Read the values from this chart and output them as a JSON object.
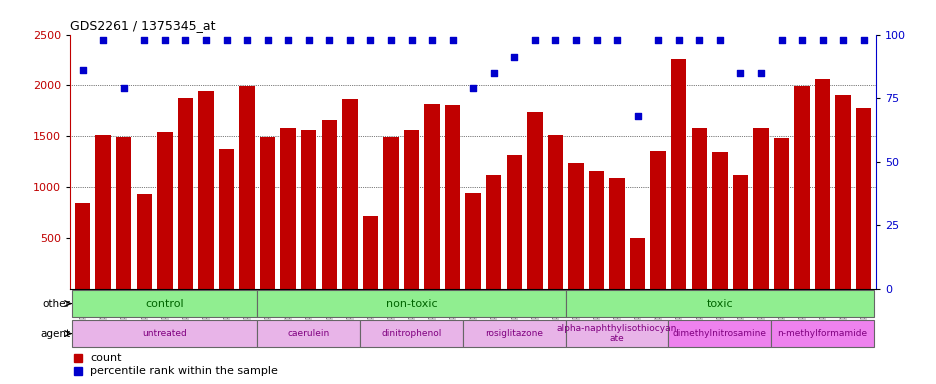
{
  "title": "GDS2261 / 1375345_at",
  "samples": [
    "GSM127079",
    "GSM127080",
    "GSM127081",
    "GSM127082",
    "GSM127083",
    "GSM127084",
    "GSM127085",
    "GSM127086",
    "GSM127087",
    "GSM127054",
    "GSM127055",
    "GSM127056",
    "GSM127057",
    "GSM127058",
    "GSM127064",
    "GSM127065",
    "GSM127066",
    "GSM127067",
    "GSM127068",
    "GSM127074",
    "GSM127075",
    "GSM127076",
    "GSM127077",
    "GSM127078",
    "GSM127049",
    "GSM127050",
    "GSM127051",
    "GSM127052",
    "GSM127053",
    "GSM127059",
    "GSM127060",
    "GSM127061",
    "GSM127062",
    "GSM127063",
    "GSM127069",
    "GSM127070",
    "GSM127071",
    "GSM127072",
    "GSM127073"
  ],
  "bar_values": [
    840,
    1510,
    1490,
    930,
    1540,
    1880,
    1940,
    1370,
    1990,
    1490,
    1580,
    1560,
    1660,
    1870,
    710,
    1490,
    1560,
    1820,
    1810,
    940,
    1120,
    1310,
    1740,
    1510,
    1240,
    1160,
    1090,
    500,
    1350,
    2260,
    1580,
    1340,
    1120,
    1580,
    1480,
    1990,
    2060,
    1910,
    1780
  ],
  "percentile_values": [
    86,
    98,
    79,
    98,
    98,
    98,
    98,
    98,
    98,
    98,
    98,
    98,
    98,
    98,
    98,
    98,
    98,
    98,
    98,
    79,
    85,
    91,
    98,
    98,
    98,
    98,
    98,
    68,
    98,
    98,
    98,
    98,
    85,
    85,
    98,
    98,
    98,
    98,
    98
  ],
  "bar_color": "#c00000",
  "dot_color": "#0000cc",
  "left_ylim": [
    0,
    2500
  ],
  "right_ylim": [
    0,
    100
  ],
  "left_yticks": [
    500,
    1000,
    1500,
    2000,
    2500
  ],
  "right_yticks": [
    0,
    25,
    50,
    75,
    100
  ],
  "hlines": [
    1000,
    1500,
    2000
  ],
  "group_other_boundaries": [
    0,
    9,
    24,
    39
  ],
  "group_other_labels": [
    "control",
    "non-toxic",
    "toxic"
  ],
  "group_other_color": "#90ee90",
  "group_agent_boundaries": [
    0,
    9,
    14,
    19,
    24,
    29,
    34,
    39
  ],
  "group_agent_labels": [
    "untreated",
    "caerulein",
    "dinitrophenol",
    "rosiglitazone",
    "alpha-naphthylisothiocyan\nate",
    "dimethylnitrosamine",
    "n-methylformamide"
  ],
  "group_agent_colors": [
    "#e8b4e8",
    "#e8b4e8",
    "#e8b4e8",
    "#e8b4e8",
    "#e8b4e8",
    "#ee82ee",
    "#ee82ee"
  ],
  "other_text_color": "#006400",
  "agent_text_color": "#800080",
  "xtick_bg_color": "#d3d3d3",
  "legend_count_color": "#c00000",
  "legend_pct_color": "#0000cc"
}
